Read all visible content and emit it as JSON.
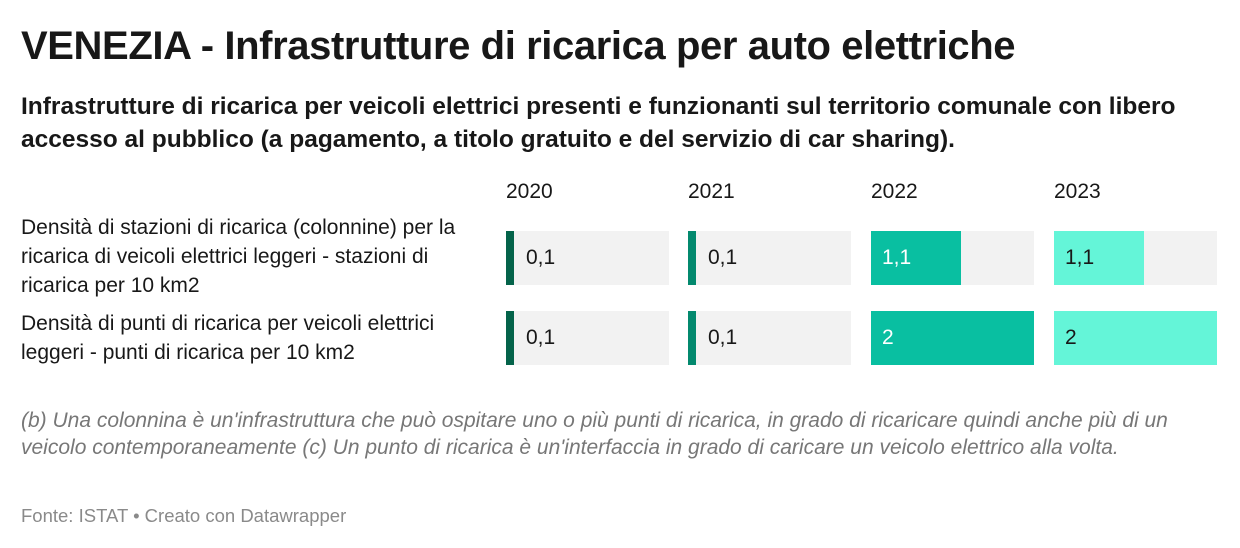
{
  "title": "VENEZIA - Infrastrutture di ricarica per auto elettriche",
  "subtitle": "Infrastrutture di ricarica per veicoli elettrici presenti e funzionanti sul territorio comunale con libero accesso al pubblico (a pagamento, a titolo gratuito e del servizio di car sharing).",
  "chart_data": {
    "type": "bar",
    "columns": [
      {
        "name": "2020",
        "color": "#04634a",
        "text_color": "#181818"
      },
      {
        "name": "2021",
        "color": "#03896e",
        "text_color": "#181818"
      },
      {
        "name": "2022",
        "color": "#09bfa1",
        "text_color": "#ffffff"
      },
      {
        "name": "2023",
        "color": "#64f5d8",
        "text_color": "#181818"
      }
    ],
    "rows": [
      {
        "label": "Densità di stazioni di ricarica (colonnine) per la ricarica di veicoli elettrici leggeri - stazioni di ricarica per 10 km2",
        "values": [
          0.1,
          0.1,
          1.1,
          1.1
        ],
        "value_labels": [
          "0,1",
          "0,1",
          "1,1",
          "1,1"
        ]
      },
      {
        "label": "Densità di punti di ricarica per veicoli elettrici leggeri - punti di ricarica per 10 km2",
        "values": [
          0.1,
          0.1,
          2,
          2
        ],
        "value_labels": [
          "0,1",
          "0,1",
          "2",
          "2"
        ]
      }
    ],
    "max_value": 2
  },
  "notes": "(b) Una colonnina è un'infrastruttura che può ospitare uno o più punti di ricarica, in grado di ricaricare quindi anche più di un veicolo contemporaneamente (c) Un punto di ricarica è un'interfaccia in grado di caricare un veicolo elettrico alla volta.",
  "footer": "Fonte: ISTAT • Creato con Datawrapper"
}
